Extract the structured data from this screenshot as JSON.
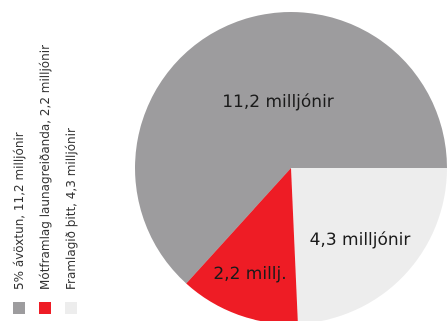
{
  "chart_data": {
    "type": "pie",
    "slices": [
      {
        "label": "5% ávöxtun, 11,2 milljónir",
        "value": 11.2,
        "slice_label": "11,2 milljónir",
        "color": "#9d9c9e"
      },
      {
        "label": "Mótframlag launagreiðanda, 2,2 milljónir",
        "value": 2.2,
        "slice_label": "2,2 millj.",
        "color": "#ee1c25"
      },
      {
        "label": "Framlagið þitt, 4,3 milljónir",
        "value": 4.3,
        "slice_label": "4,3 milljónir",
        "color": "#ededed"
      }
    ],
    "legend": {
      "placement": "left",
      "orientation": "vertical"
    }
  }
}
